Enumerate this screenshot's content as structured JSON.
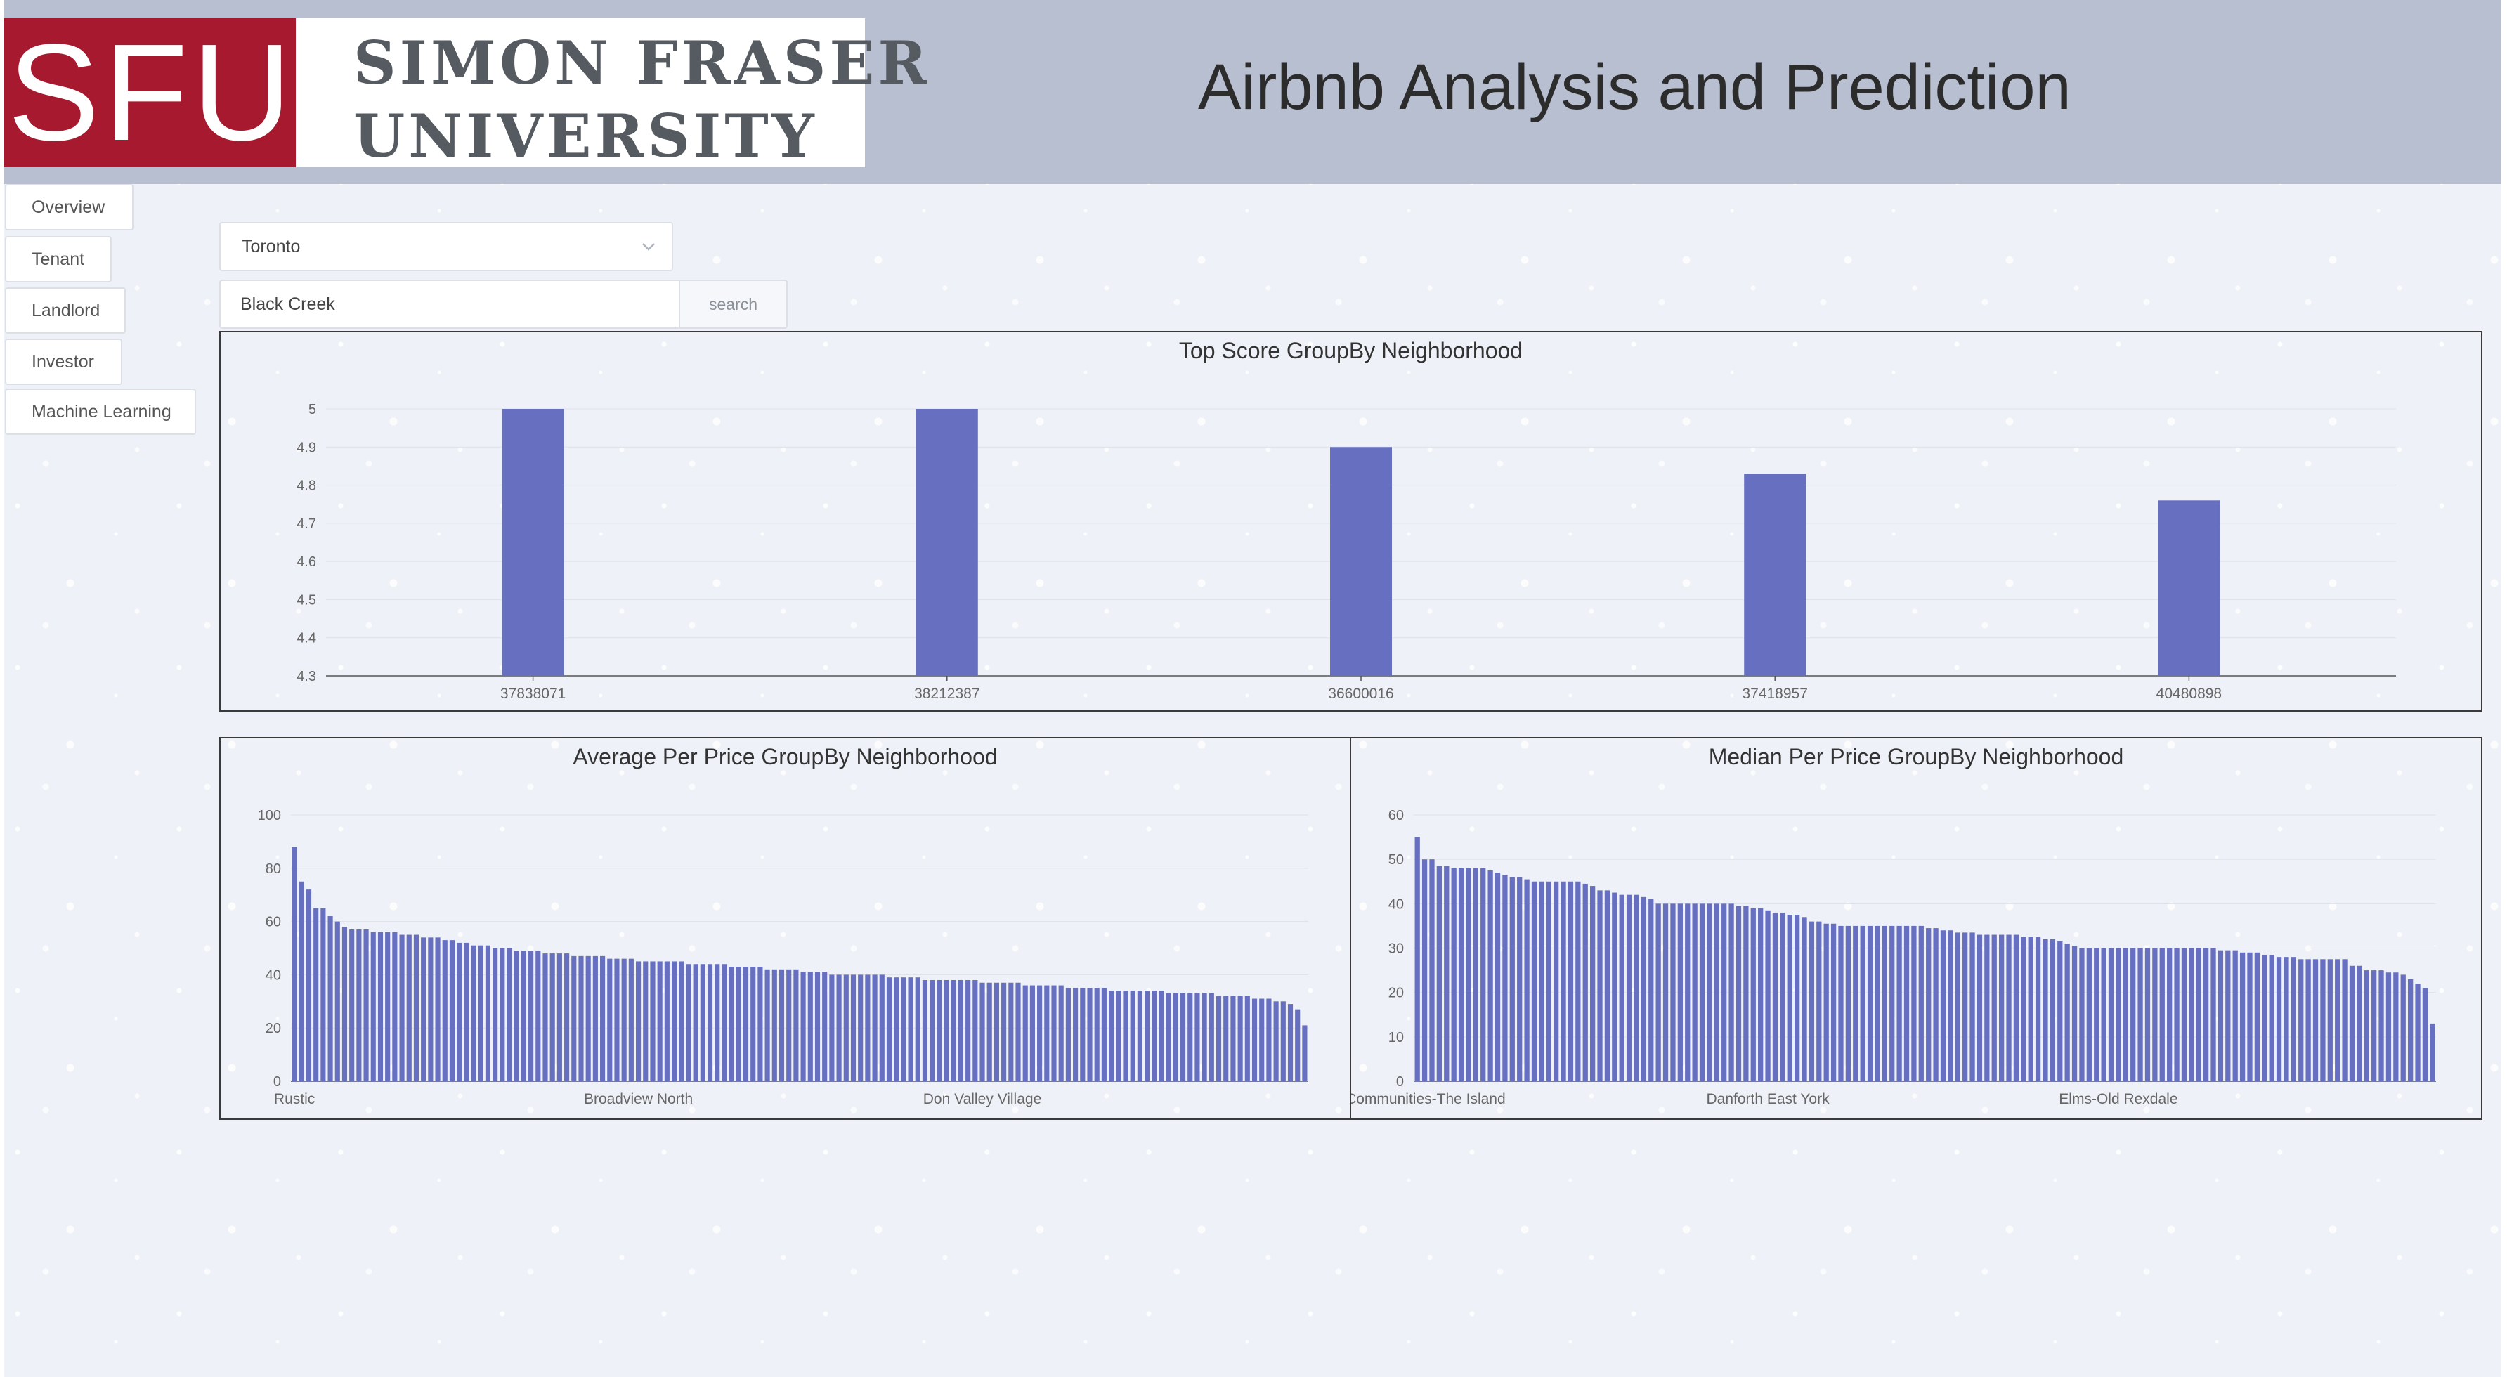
{
  "header": {
    "logo": {
      "mark": "SFU",
      "line1": "SIMON FRASER",
      "line2": "UNIVERSITY"
    },
    "title": "Airbnb Analysis and Prediction"
  },
  "nav": {
    "items": [
      {
        "label": "Overview"
      },
      {
        "label": "Tenant"
      },
      {
        "label": "Landlord"
      },
      {
        "label": "Investor"
      },
      {
        "label": "Machine Learning"
      }
    ]
  },
  "controls": {
    "city_select": {
      "value": "Toronto"
    },
    "search": {
      "value": "Black Creek",
      "button_label": "search"
    }
  },
  "colors": {
    "bar": "#6770c0",
    "header_bg": "#b8bfd0",
    "logo_red": "#a6192e"
  },
  "chart_data": [
    {
      "type": "bar",
      "title": "Top Score GroupBy Neighborhood",
      "categories": [
        "37838071",
        "38212387",
        "36600016",
        "37418957",
        "40480898"
      ],
      "values": [
        5.0,
        5.0,
        4.9,
        4.83,
        4.76
      ],
      "ylim": [
        4.3,
        5
      ],
      "yticks": [
        "4.3",
        "4.4",
        "4.5",
        "4.6",
        "4.7",
        "4.8",
        "4.9",
        "5"
      ],
      "grid": true
    },
    {
      "type": "bar",
      "title": "Average Per Price GroupBy Neighborhood",
      "categories_shown": [
        "Rustic",
        "Broadview North",
        "Don Valley Village"
      ],
      "values": [
        88,
        75,
        72,
        65,
        65,
        62,
        60,
        58,
        57,
        57,
        57,
        56,
        56,
        56,
        56,
        55,
        55,
        55,
        54,
        54,
        54,
        53,
        53,
        52,
        52,
        51,
        51,
        51,
        50,
        50,
        50,
        49,
        49,
        49,
        49,
        48,
        48,
        48,
        48,
        47,
        47,
        47,
        47,
        47,
        46,
        46,
        46,
        46,
        45,
        45,
        45,
        45,
        45,
        45,
        45,
        44,
        44,
        44,
        44,
        44,
        44,
        43,
        43,
        43,
        43,
        43,
        42,
        42,
        42,
        42,
        42,
        41,
        41,
        41,
        41,
        40,
        40,
        40,
        40,
        40,
        40,
        40,
        40,
        39,
        39,
        39,
        39,
        39,
        38,
        38,
        38,
        38,
        38,
        38,
        38,
        38,
        37,
        37,
        37,
        37,
        37,
        37,
        36,
        36,
        36,
        36,
        36,
        36,
        35,
        35,
        35,
        35,
        35,
        35,
        34,
        34,
        34,
        34,
        34,
        34,
        34,
        34,
        33,
        33,
        33,
        33,
        33,
        33,
        33,
        32,
        32,
        32,
        32,
        32,
        31,
        31,
        31,
        30,
        30,
        29,
        27,
        21
      ],
      "ylim": [
        0,
        100
      ],
      "yticks": [
        "0",
        "20",
        "40",
        "60",
        "80",
        "100"
      ],
      "grid": true
    },
    {
      "type": "bar",
      "title": "Median Per Price GroupBy Neighborhood",
      "categories_shown": [
        "nt Communities-The Island",
        "Danforth East York",
        "Elms-Old Rexdale"
      ],
      "values": [
        55,
        50,
        50,
        48.5,
        48.5,
        48,
        48,
        48,
        48,
        48,
        47.5,
        47,
        46.5,
        46,
        46,
        45.5,
        45,
        45,
        45,
        45,
        45,
        45,
        45,
        44.5,
        44,
        43,
        43,
        42.5,
        42,
        42,
        42,
        41.5,
        41,
        40,
        40,
        40,
        40,
        40,
        40,
        40,
        40,
        40,
        40,
        40,
        39.5,
        39.5,
        39,
        39,
        38.5,
        38,
        38,
        37.5,
        37.5,
        37,
        36,
        36,
        35.5,
        35.5,
        35,
        35,
        35,
        35,
        35,
        35,
        35,
        35,
        35,
        35,
        35,
        35,
        34.5,
        34.5,
        34,
        34,
        33.5,
        33.5,
        33.5,
        33,
        33,
        33,
        33,
        33,
        33,
        32.5,
        32.5,
        32.5,
        32,
        32,
        31.5,
        31,
        30.5,
        30,
        30,
        30,
        30,
        30,
        30,
        30,
        30,
        30,
        30,
        30,
        30,
        30,
        30,
        30,
        30,
        30,
        30,
        30,
        29.5,
        29.5,
        29.5,
        29,
        29,
        29,
        28.5,
        28.5,
        28,
        28,
        28,
        27.5,
        27.5,
        27.5,
        27.5,
        27.5,
        27.5,
        27.5,
        26,
        26,
        25,
        25,
        25,
        24.5,
        24.5,
        24,
        23,
        22,
        21,
        13
      ],
      "ylim": [
        0,
        60
      ],
      "yticks": [
        "0",
        "10",
        "20",
        "30",
        "40",
        "50",
        "60"
      ],
      "grid": true
    }
  ]
}
